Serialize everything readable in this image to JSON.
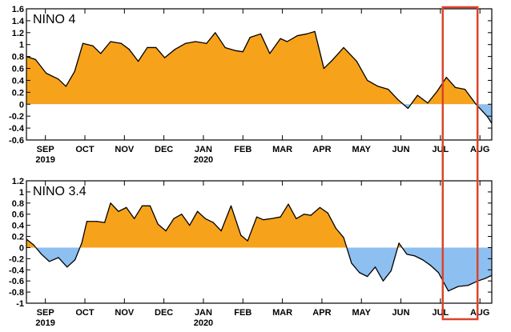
{
  "colors": {
    "positive_fill": "#f7a21b",
    "negative_fill": "#8dbff0",
    "line": "#000000",
    "highlight_box": "#d9442a"
  },
  "highlight": {
    "start_x": 7.0,
    "end_x": 8.0,
    "description": ""
  },
  "chart_data": [
    {
      "type": "area",
      "title": "NINO 4",
      "xlabel": "",
      "ylabel": "",
      "ylim": [
        -0.6,
        1.6
      ],
      "yticks": [
        -0.6,
        -0.4,
        -0.2,
        0,
        0.2,
        0.4,
        0.6,
        0.8,
        1,
        1.2,
        1.4,
        1.6
      ],
      "ytick_labels": [
        "-0.6",
        "-0.4",
        "-0.2",
        "0",
        "0.2",
        "0.4",
        "0.6",
        "0.8",
        "1",
        "1.2",
        "1.4",
        "1.6"
      ],
      "xlim": [
        -0.48,
        11.3
      ],
      "month_ticks": [
        {
          "x": 0,
          "label": "SEP",
          "year": "2019"
        },
        {
          "x": 1,
          "label": "OCT",
          "year": ""
        },
        {
          "x": 2,
          "label": "NOV",
          "year": ""
        },
        {
          "x": 3,
          "label": "DEC",
          "year": ""
        },
        {
          "x": 4,
          "label": "JAN",
          "year": "2020"
        },
        {
          "x": 5,
          "label": "FEB",
          "year": ""
        },
        {
          "x": 6,
          "label": "MAR",
          "year": ""
        },
        {
          "x": 7,
          "label": "APR",
          "year": ""
        },
        {
          "x": 8,
          "label": "MAY",
          "year": ""
        },
        {
          "x": 9,
          "label": "JUN",
          "year": ""
        },
        {
          "x": 10,
          "label": "JUL",
          "year": ""
        },
        {
          "x": 11,
          "label": "AUG",
          "year": ""
        }
      ],
      "series": [
        {
          "x": [
            -0.48,
            -0.25,
            0.02,
            0.33,
            0.52,
            0.74,
            0.95,
            1.2,
            1.4,
            1.65,
            1.92,
            2.12,
            2.35,
            2.58,
            2.8,
            3.02,
            3.28,
            3.55,
            3.8,
            4.08,
            4.3,
            4.55,
            4.8,
            5.0,
            5.18,
            5.45,
            5.68,
            5.95,
            6.12,
            6.38,
            6.62,
            6.82,
            7.05,
            7.28,
            7.55,
            7.88,
            8.15,
            8.42,
            8.68,
            8.92,
            9.18,
            9.42,
            9.68,
            9.92,
            10.15,
            10.38,
            10.62,
            10.9,
            11.18,
            11.3
          ],
          "y": [
            0.8,
            0.75,
            0.52,
            0.42,
            0.3,
            0.55,
            1.02,
            0.98,
            0.85,
            1.05,
            1.02,
            0.92,
            0.72,
            0.95,
            0.95,
            0.78,
            0.92,
            1.02,
            1.05,
            1.02,
            1.2,
            0.95,
            0.9,
            0.88,
            1.12,
            1.18,
            0.85,
            1.1,
            1.05,
            1.15,
            1.18,
            1.22,
            0.6,
            0.75,
            0.95,
            0.72,
            0.4,
            0.3,
            0.25,
            0.08,
            -0.07,
            0.15,
            0.02,
            0.22,
            0.45,
            0.28,
            0.25,
            0.0,
            -0.2,
            -0.32
          ]
        }
      ]
    },
    {
      "type": "area",
      "title": "NINO 3.4",
      "xlabel": "",
      "ylabel": "",
      "ylim": [
        -1.0,
        1.2
      ],
      "yticks": [
        -1,
        -0.8,
        -0.6,
        -0.4,
        -0.2,
        0,
        0.2,
        0.4,
        0.6,
        0.8,
        1,
        1.2
      ],
      "ytick_labels": [
        "-1",
        "-0.8",
        "-0.6",
        "-0.4",
        "-0.2",
        "0",
        "0.2",
        "0.4",
        "0.6",
        "0.8",
        "1",
        "1.2"
      ],
      "xlim": [
        -0.48,
        11.3
      ],
      "month_ticks": [
        {
          "x": 0,
          "label": "SEP",
          "year": "2019"
        },
        {
          "x": 1,
          "label": "OCT",
          "year": ""
        },
        {
          "x": 2,
          "label": "NOV",
          "year": ""
        },
        {
          "x": 3,
          "label": "DEC",
          "year": ""
        },
        {
          "x": 4,
          "label": "JAN",
          "year": "2020"
        },
        {
          "x": 5,
          "label": "FEB",
          "year": ""
        },
        {
          "x": 6,
          "label": "MAR",
          "year": ""
        },
        {
          "x": 7,
          "label": "APR",
          "year": ""
        },
        {
          "x": 8,
          "label": "MAY",
          "year": ""
        },
        {
          "x": 9,
          "label": "JUN",
          "year": ""
        },
        {
          "x": 10,
          "label": "JUL",
          "year": ""
        },
        {
          "x": 11,
          "label": "AUG",
          "year": ""
        }
      ],
      "series": [
        {
          "x": [
            -0.48,
            -0.3,
            -0.1,
            0.1,
            0.33,
            0.55,
            0.75,
            0.92,
            1.05,
            1.3,
            1.5,
            1.65,
            1.85,
            2.05,
            2.25,
            2.45,
            2.65,
            2.85,
            3.05,
            3.25,
            3.45,
            3.65,
            3.85,
            4.05,
            4.25,
            4.45,
            4.7,
            4.95,
            5.12,
            5.35,
            5.52,
            5.72,
            5.95,
            6.15,
            6.35,
            6.55,
            6.72,
            6.95,
            7.15,
            7.35,
            7.55,
            7.75,
            7.95,
            8.15,
            8.35,
            8.55,
            8.75,
            8.95,
            9.15,
            9.35,
            9.55,
            9.75,
            9.95,
            10.2,
            10.45,
            10.7,
            10.95,
            11.15,
            11.3
          ],
          "y": [
            0.15,
            0.05,
            -0.12,
            -0.25,
            -0.18,
            -0.35,
            -0.22,
            0.08,
            0.47,
            0.47,
            0.45,
            0.8,
            0.65,
            0.72,
            0.52,
            0.75,
            0.75,
            0.42,
            0.3,
            0.52,
            0.6,
            0.4,
            0.65,
            0.52,
            0.45,
            0.3,
            0.75,
            0.22,
            0.12,
            0.55,
            0.5,
            0.52,
            0.55,
            0.78,
            0.52,
            0.6,
            0.58,
            0.72,
            0.62,
            0.35,
            0.18,
            -0.28,
            -0.45,
            -0.52,
            -0.35,
            -0.6,
            -0.42,
            0.08,
            -0.12,
            -0.15,
            -0.22,
            -0.32,
            -0.45,
            -0.78,
            -0.7,
            -0.68,
            -0.6,
            -0.55,
            -0.5
          ]
        }
      ]
    }
  ]
}
